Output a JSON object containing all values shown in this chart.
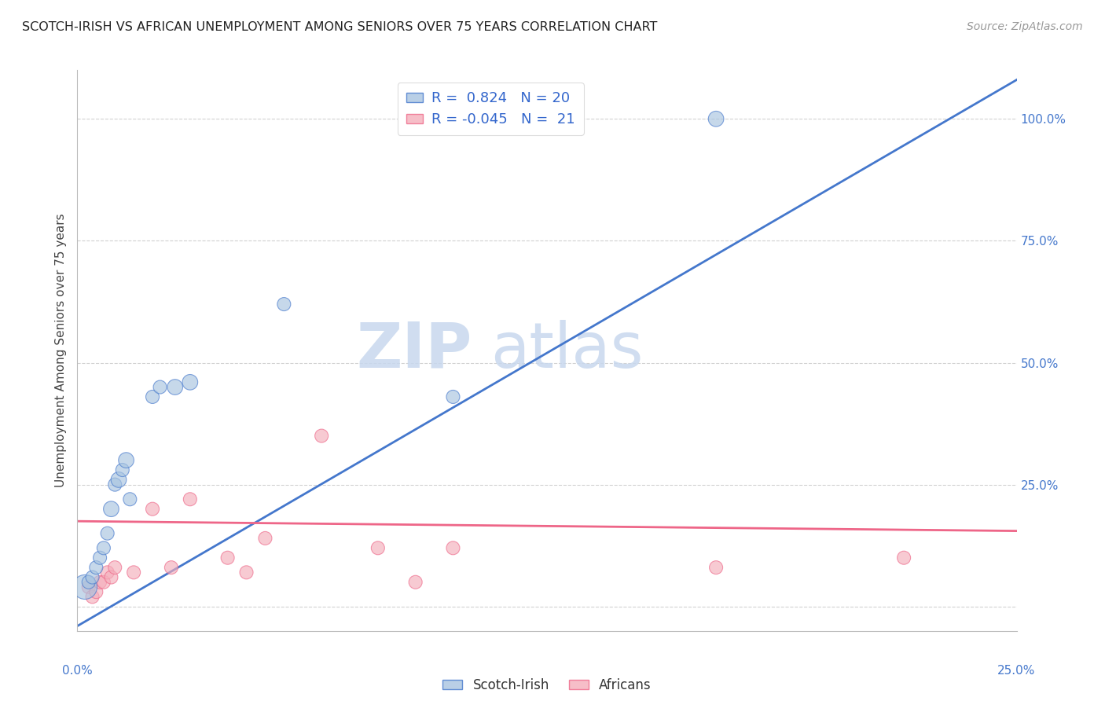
{
  "title": "SCOTCH-IRISH VS AFRICAN UNEMPLOYMENT AMONG SENIORS OVER 75 YEARS CORRELATION CHART",
  "source": "Source: ZipAtlas.com",
  "ylabel": "Unemployment Among Seniors over 75 years",
  "xlim": [
    0.0,
    0.25
  ],
  "ylim": [
    -0.05,
    1.1
  ],
  "legend_r_blue": "0.824",
  "legend_n_blue": "20",
  "legend_r_pink": "-0.045",
  "legend_n_pink": "21",
  "blue_color": "#A8C4E0",
  "pink_color": "#F4AEBB",
  "line_blue": "#4477CC",
  "line_pink": "#EE6688",
  "watermark_zip": "ZIP",
  "watermark_atlas": "atlas",
  "scotch_irish_x": [
    0.002,
    0.003,
    0.004,
    0.005,
    0.006,
    0.007,
    0.008,
    0.009,
    0.01,
    0.011,
    0.012,
    0.013,
    0.014,
    0.02,
    0.022,
    0.026,
    0.03,
    0.055,
    0.1,
    0.17
  ],
  "scotch_irish_y": [
    0.04,
    0.05,
    0.06,
    0.08,
    0.1,
    0.12,
    0.15,
    0.2,
    0.25,
    0.26,
    0.28,
    0.3,
    0.22,
    0.43,
    0.45,
    0.45,
    0.46,
    0.62,
    0.43,
    1.0
  ],
  "scotch_irish_sizes": [
    500,
    150,
    150,
    150,
    150,
    150,
    150,
    200,
    150,
    200,
    150,
    200,
    150,
    150,
    150,
    200,
    200,
    150,
    150,
    200
  ],
  "africans_x": [
    0.003,
    0.004,
    0.005,
    0.006,
    0.007,
    0.008,
    0.009,
    0.01,
    0.015,
    0.02,
    0.025,
    0.03,
    0.04,
    0.045,
    0.05,
    0.065,
    0.08,
    0.09,
    0.1,
    0.17,
    0.22
  ],
  "africans_y": [
    0.04,
    0.02,
    0.03,
    0.05,
    0.05,
    0.07,
    0.06,
    0.08,
    0.07,
    0.2,
    0.08,
    0.22,
    0.1,
    0.07,
    0.14,
    0.35,
    0.12,
    0.05,
    0.12,
    0.08,
    0.1
  ],
  "africans_sizes": [
    150,
    150,
    150,
    150,
    150,
    150,
    150,
    150,
    150,
    150,
    150,
    150,
    150,
    150,
    150,
    150,
    150,
    150,
    150,
    150,
    150
  ],
  "blue_line_x0": 0.0,
  "blue_line_y0": -0.04,
  "blue_line_x1": 0.25,
  "blue_line_y1": 1.08,
  "pink_line_x0": 0.0,
  "pink_line_y0": 0.175,
  "pink_line_x1": 0.25,
  "pink_line_y1": 0.155
}
